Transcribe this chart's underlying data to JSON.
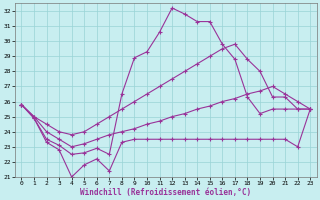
{
  "xlabel": "Windchill (Refroidissement éolien,°C)",
  "bg_color": "#c8eef0",
  "line_color": "#993399",
  "marker": "+",
  "xlim": [
    -0.5,
    23.5
  ],
  "ylim": [
    21,
    32.5
  ],
  "xticks": [
    0,
    1,
    2,
    3,
    4,
    5,
    6,
    7,
    8,
    9,
    10,
    11,
    12,
    13,
    14,
    15,
    16,
    17,
    18,
    19,
    20,
    21,
    22,
    23
  ],
  "yticks": [
    21,
    22,
    23,
    24,
    25,
    26,
    27,
    28,
    29,
    30,
    31,
    32
  ],
  "line_jagged": [
    25.8,
    24.9,
    23.3,
    22.8,
    21.0,
    21.8,
    22.2,
    21.4,
    23.3,
    23.5,
    23.5,
    23.5,
    23.5,
    23.5,
    23.5,
    23.5,
    23.5,
    23.5,
    23.5,
    23.5,
    23.5,
    23.5,
    23.0,
    25.5
  ],
  "line_peak": [
    25.8,
    24.9,
    23.5,
    23.1,
    22.5,
    22.6,
    22.9,
    22.5,
    26.5,
    28.9,
    29.3,
    30.6,
    32.2,
    31.8,
    31.3,
    31.3,
    29.8,
    28.8,
    26.3,
    25.2,
    25.5,
    25.5,
    25.5,
    25.5
  ],
  "line_upper": [
    25.8,
    25.0,
    24.5,
    24.0,
    23.8,
    24.0,
    24.5,
    25.0,
    25.5,
    26.0,
    26.5,
    27.0,
    27.5,
    28.0,
    28.5,
    29.0,
    29.5,
    29.8,
    28.8,
    28.0,
    26.3,
    26.3,
    25.5,
    25.5
  ],
  "line_lower": [
    25.8,
    25.0,
    24.0,
    23.5,
    23.0,
    23.2,
    23.5,
    23.8,
    24.0,
    24.2,
    24.5,
    24.7,
    25.0,
    25.2,
    25.5,
    25.7,
    26.0,
    26.2,
    26.5,
    26.7,
    27.0,
    26.5,
    26.0,
    25.5
  ]
}
